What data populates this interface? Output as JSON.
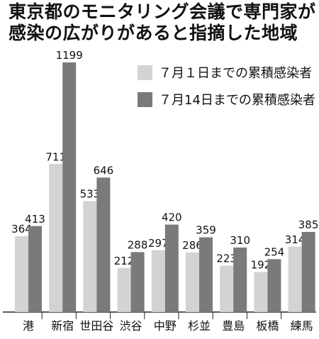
{
  "chart_data": {
    "type": "bar",
    "title": "東京都のモニタリング会議で専門家が",
    "subtitle": "感染の広がりがあると指摘した地域",
    "categories": [
      "港",
      "新宿",
      "世田谷",
      "渋谷",
      "中野",
      "杉並",
      "豊島",
      "板橋",
      "練馬"
    ],
    "series": [
      {
        "name": "７月１日までの累積感染者",
        "color": "#d3d3d3",
        "values": [
          364,
          711,
          533,
          212,
          297,
          286,
          223,
          192,
          314
        ]
      },
      {
        "name": "７月14日までの累積感染者",
        "color": "#7a7a7a",
        "values": [
          413,
          1199,
          646,
          288,
          420,
          359,
          310,
          254,
          385
        ]
      }
    ],
    "ylim": [
      0,
      1199
    ],
    "grid": false,
    "legend_position": "top-right"
  }
}
